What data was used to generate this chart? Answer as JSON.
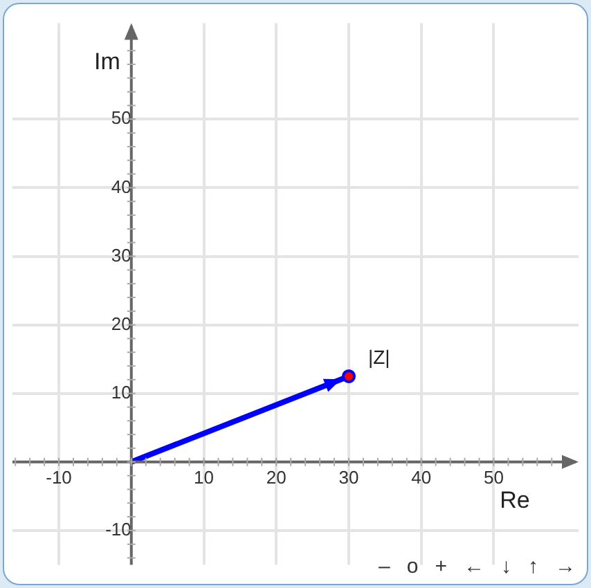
{
  "chart_data": {
    "type": "line",
    "xlabel": "Re",
    "ylabel": "Im",
    "xlim": [
      -16.4,
      61.7
    ],
    "ylim": [
      -15,
      64
    ],
    "xticks": [
      -10,
      10,
      20,
      30,
      40,
      50
    ],
    "yticks": [
      -10,
      10,
      20,
      30,
      40,
      50
    ],
    "series": [
      {
        "x": [
          0,
          30
        ],
        "values": [
          0,
          12.5
        ],
        "color": "#0000ff"
      }
    ],
    "marker": "circle",
    "grid": true,
    "legend": false,
    "annotations": [
      {
        "text": "|Z|",
        "x": 30,
        "y": 12.5
      },
      "–",
      "o",
      "+",
      "←",
      "↓",
      "↑",
      "→"
    ]
  }
}
